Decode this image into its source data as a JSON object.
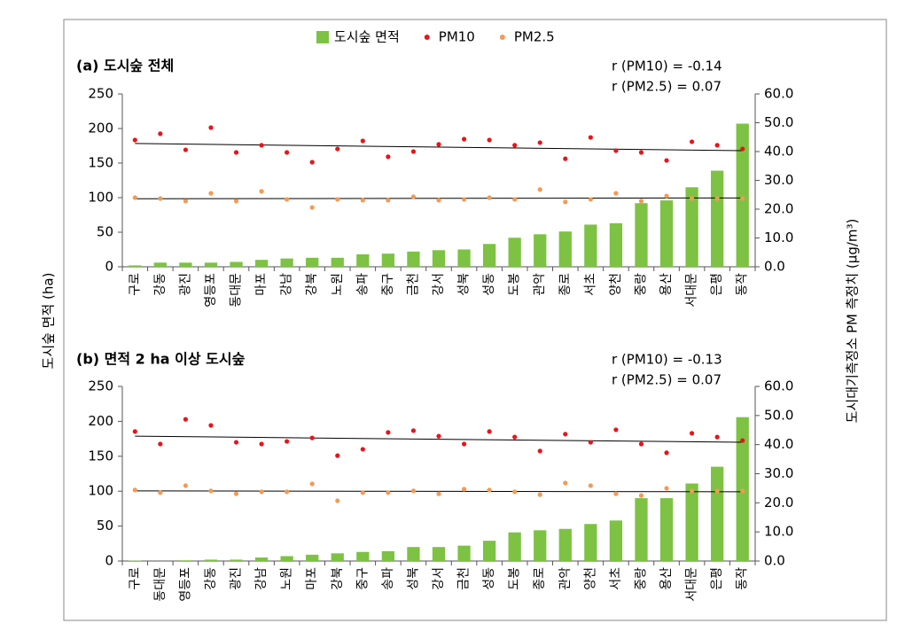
{
  "ylabel": "도시숲 면적 (ha)",
  "y2label": "도시대기측정소 PM 측정치 (μg/m³)",
  "chart_data": [
    {
      "type": "bar",
      "title": "(a) 도시숲 전체",
      "annotations": [
        "r (PM10) = -0.14",
        "r (PM2.5) = 0.07"
      ],
      "categories": [
        "구로",
        "강동",
        "광진",
        "영등포",
        "동대문",
        "마포",
        "강남",
        "강북",
        "노원",
        "송파",
        "중구",
        "금천",
        "강서",
        "성북",
        "성동",
        "도봉",
        "관악",
        "종로",
        "서초",
        "양천",
        "중랑",
        "용산",
        "서대문",
        "은평",
        "동작"
      ],
      "series": [
        {
          "name": "도시숲 면적",
          "color": "#7dc243",
          "values": [
            2,
            6,
            6,
            6,
            7,
            10,
            12,
            13,
            13,
            18,
            19,
            22,
            24,
            25,
            33,
            42,
            47,
            51,
            61,
            63,
            92,
            96,
            115,
            139,
            207
          ]
        },
        {
          "name": "PM10",
          "type": "scatter",
          "axis": "y2",
          "color": "#e8141a",
          "values": [
            44.0,
            46.2,
            40.6,
            48.3,
            39.7,
            42.2,
            39.7,
            36.3,
            40.9,
            43.7,
            38.2,
            40.0,
            42.5,
            44.3,
            44.0,
            42.2,
            43.1,
            37.5,
            44.9,
            40.3,
            39.7,
            36.9,
            43.4,
            42.2,
            40.9
          ],
          "trend": [
            42.8,
            40.3
          ]
        },
        {
          "name": "PM2.5",
          "type": "scatter",
          "axis": "y2",
          "color": "#f39a55",
          "values": [
            24.0,
            23.7,
            22.8,
            25.5,
            22.8,
            26.2,
            23.4,
            20.6,
            23.4,
            23.1,
            23.1,
            24.3,
            23.1,
            23.4,
            24.0,
            23.4,
            26.8,
            22.5,
            23.4,
            25.5,
            22.8,
            24.6,
            23.7,
            23.7,
            23.7
          ],
          "trend": [
            23.6,
            23.9
          ]
        }
      ],
      "ylim": [
        0,
        250
      ],
      "yticks": [
        0,
        50,
        100,
        150,
        200,
        250
      ],
      "y2lim": [
        0,
        60
      ],
      "y2ticks": [
        {
          "value": 0,
          "label": "0.0"
        },
        {
          "value": 10,
          "label": "10.0"
        },
        {
          "value": 20,
          "label": "20.0"
        },
        {
          "value": 30,
          "label": "30.0"
        },
        {
          "value": 40,
          "label": "40.0"
        },
        {
          "value": 50,
          "label": "50.0"
        },
        {
          "value": 60,
          "label": "60.0"
        }
      ],
      "legend": "top"
    },
    {
      "type": "bar",
      "title": "(b) 면적 2 ha 이상 도시숲",
      "annotations": [
        "r (PM10) = -0.13",
        "r (PM2.5) = 0.07"
      ],
      "categories": [
        "구로",
        "동대문",
        "영등포",
        "강동",
        "광진",
        "강남",
        "노원",
        "마포",
        "강북",
        "중구",
        "송파",
        "성북",
        "강서",
        "금천",
        "성동",
        "도봉",
        "종로",
        "관악",
        "양천",
        "서초",
        "중랑",
        "용산",
        "서대문",
        "은평",
        "동작"
      ],
      "series": [
        {
          "color": "#7dc243",
          "values": [
            0.5,
            0,
            1,
            2,
            2,
            5,
            7,
            9,
            11,
            13,
            14,
            20,
            20,
            22,
            29,
            41,
            44,
            46,
            53,
            58,
            90,
            90,
            111,
            135,
            206
          ]
        },
        {
          "type": "scatter",
          "axis": "y2",
          "color": "#e8141a",
          "values": [
            44.5,
            40.2,
            48.7,
            46.6,
            40.8,
            40.2,
            41.1,
            42.3,
            36.2,
            38.4,
            44.2,
            44.8,
            42.9,
            40.2,
            44.5,
            42.6,
            37.8,
            43.6,
            40.8,
            45.1,
            40.2,
            37.2,
            43.9,
            42.6,
            41.4
          ],
          "trend": [
            42.9,
            40.8
          ]
        },
        {
          "type": "scatter",
          "axis": "y2",
          "color": "#f39a55",
          "values": [
            24.4,
            23.5,
            25.9,
            24.1,
            23.1,
            23.8,
            23.8,
            26.5,
            20.7,
            23.5,
            23.5,
            24.1,
            23.1,
            24.7,
            24.4,
            23.8,
            22.8,
            26.8,
            25.9,
            23.1,
            22.5,
            25.0,
            24.1,
            24.1,
            24.1
          ],
          "trend": [
            24.1,
            23.8
          ]
        }
      ],
      "ylim": [
        0,
        250
      ],
      "yticks": [
        0,
        50,
        100,
        150,
        200,
        250
      ],
      "y2lim": [
        0,
        60
      ],
      "y2ticks": [
        {
          "value": 0,
          "label": "0.0"
        },
        {
          "value": 10,
          "label": "10.0"
        },
        {
          "value": 20,
          "label": "20.0"
        },
        {
          "value": 30,
          "label": "30.0"
        },
        {
          "value": 40,
          "label": "40.0"
        },
        {
          "value": 50,
          "label": "50.0"
        },
        {
          "value": 60,
          "label": "60.0"
        }
      ]
    }
  ]
}
